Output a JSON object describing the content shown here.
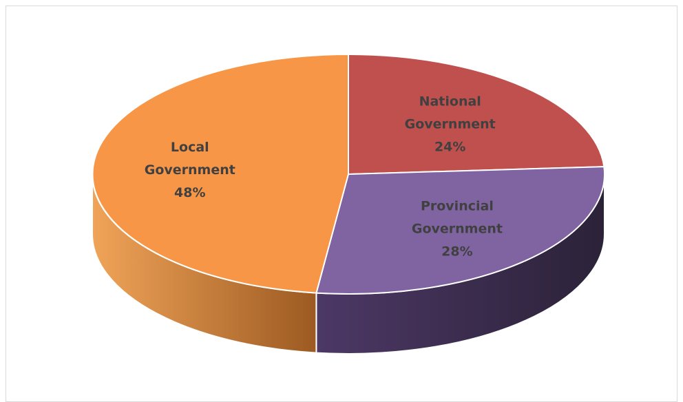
{
  "chart_data": {
    "type": "pie",
    "style": "3d",
    "title": "",
    "slices": [
      {
        "name": "National Government",
        "label_lines": [
          "National",
          "Government"
        ],
        "value": 24,
        "value_label": "24%",
        "color": "#C0504D"
      },
      {
        "name": "Provincial Government",
        "label_lines": [
          "Provincial",
          "Government"
        ],
        "value": 28,
        "value_label": "28%",
        "color": "#8064A2"
      },
      {
        "name": "Local Government",
        "label_lines": [
          "Local",
          "Government"
        ],
        "value": 48,
        "value_label": "48%",
        "color": "#F79646"
      }
    ],
    "legend": "none",
    "data_labels": "category-and-percent inside slices"
  }
}
